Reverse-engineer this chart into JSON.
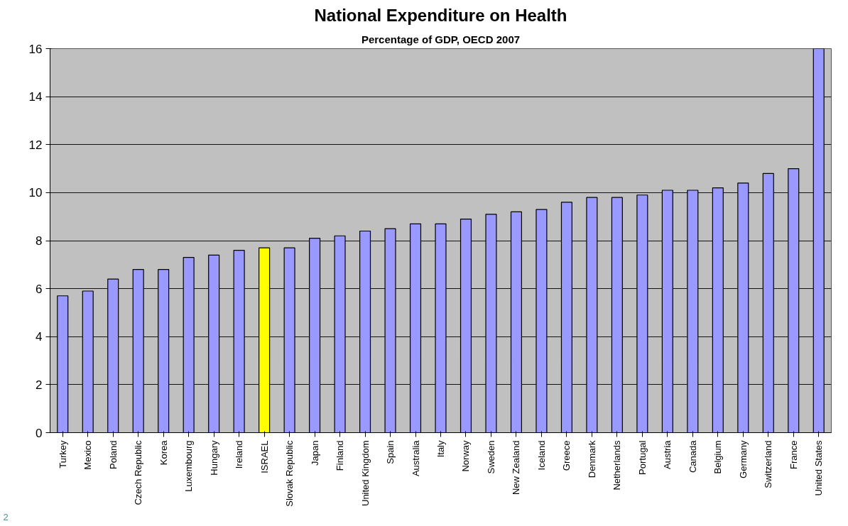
{
  "chart_data": {
    "type": "bar",
    "title": "National Expenditure on Health",
    "subtitle": "Percentage of GDP, OECD 2007",
    "categories": [
      "Turkey",
      "Mexico",
      "Poland",
      "Czech Republic",
      "Korea",
      "Luxembourg",
      "Hungary",
      "Ireland",
      "ISRAEL",
      "Slovak Republic",
      "Japan",
      "Finland",
      "United Kingdom",
      "Spain",
      "Australia",
      "Italy",
      "Norway",
      "Sweden",
      "New Zealand",
      "Iceland",
      "Greece",
      "Denmark",
      "Netherlands",
      "Portugal",
      "Austria",
      "Canada",
      "Belgium",
      "Germany",
      "Switzerland",
      "France",
      "United States"
    ],
    "values": [
      5.7,
      5.9,
      6.4,
      6.8,
      6.8,
      7.3,
      7.4,
      7.6,
      7.7,
      7.7,
      8.1,
      8.2,
      8.4,
      8.5,
      8.7,
      8.7,
      8.9,
      9.1,
      9.2,
      9.3,
      9.6,
      9.8,
      9.8,
      9.9,
      10.1,
      10.1,
      10.2,
      10.4,
      10.8,
      11.0,
      16.0
    ],
    "colors": [
      "#9999ff",
      "#9999ff",
      "#9999ff",
      "#9999ff",
      "#9999ff",
      "#9999ff",
      "#9999ff",
      "#9999ff",
      "#ffff00",
      "#9999ff",
      "#9999ff",
      "#9999ff",
      "#9999ff",
      "#9999ff",
      "#9999ff",
      "#9999ff",
      "#9999ff",
      "#9999ff",
      "#9999ff",
      "#9999ff",
      "#9999ff",
      "#9999ff",
      "#9999ff",
      "#9999ff",
      "#9999ff",
      "#9999ff",
      "#9999ff",
      "#9999ff",
      "#9999ff",
      "#9999ff",
      "#9999ff"
    ],
    "ylim": [
      0,
      16
    ],
    "yticks": [
      0,
      2,
      4,
      6,
      8,
      10,
      12,
      14,
      16
    ],
    "grid": "y",
    "annotations": [
      "2"
    ]
  }
}
